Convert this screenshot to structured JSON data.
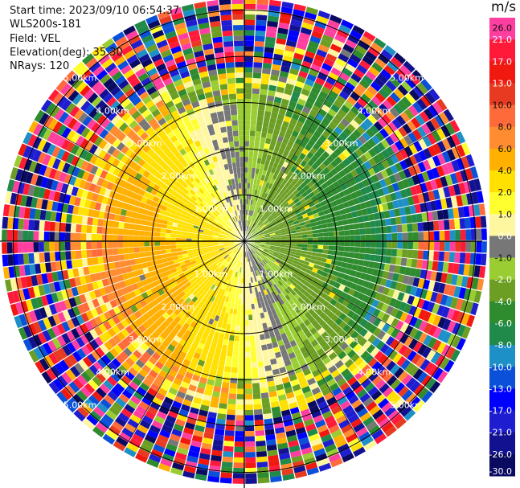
{
  "header": {
    "start_time": "Start time: 2023/09/10 06:54:37",
    "instrument": "WLS200s-181",
    "field": "Field: VEL",
    "elevation": "Elevation(deg): 35.30",
    "nrays": "NRays: 120"
  },
  "colorbar": {
    "unit": "m/s",
    "ticks": [
      "26.0",
      "21.0",
      "17.0",
      "13.0",
      "10.0",
      "8.0",
      "6.0",
      "4.0",
      "2.0",
      "1.0",
      "0.0",
      "-1.0",
      "-2.0",
      "-4.0",
      "-6.0",
      "-8.0",
      "-10.0",
      "-13.0",
      "-17.0",
      "-21.0",
      "-26.0",
      "-30.0"
    ],
    "colors": [
      "#ff3fa0",
      "#ff1a3a",
      "#f0180f",
      "#e83a20",
      "#ff6a3a",
      "#ff8c30",
      "#ffb000",
      "#ffe000",
      "#ffff30",
      "#fff7a0",
      "#777777",
      "#9acd32",
      "#6b9e23",
      "#2e8b2e",
      "#1f8a4a",
      "#1e90c8",
      "#0a50d8",
      "#0000ff",
      "#1e1ed0",
      "#121290",
      "#0a0a60",
      "#050540"
    ]
  },
  "chart_data": {
    "type": "ppi",
    "field": "VEL",
    "units": "m/s",
    "elevation_deg": 35.3,
    "nrays": 120,
    "range_ring_labels": [
      "1.00km",
      "2.00km",
      "3.00km",
      "4.00km",
      "5.00km"
    ],
    "range_rings_km": [
      1,
      2,
      3,
      4,
      5
    ],
    "max_range_km": 5.25,
    "color_scale_min": -30.0,
    "color_scale_max": 26.0
  }
}
